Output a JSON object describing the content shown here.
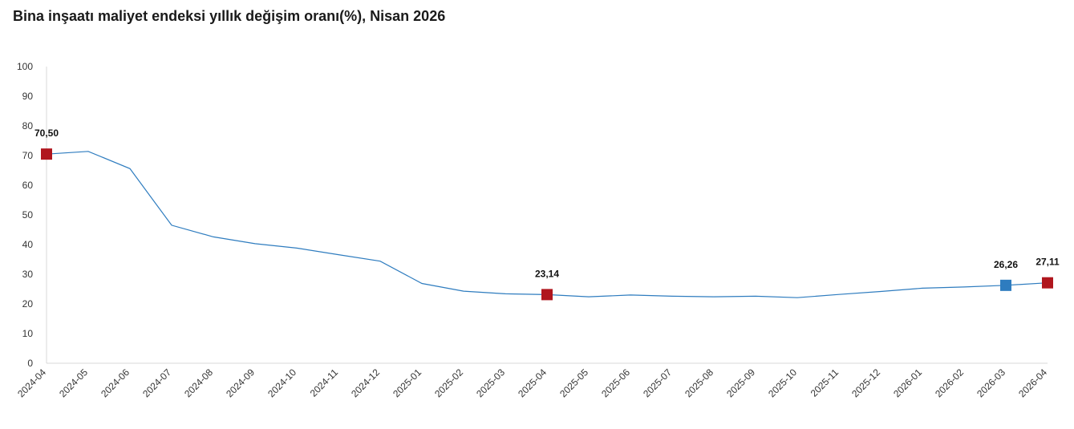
{
  "title": "Bina inşaatı maliyet endeksi yıllık değişim oranı(%), Nisan 2026",
  "chart_data": {
    "type": "line",
    "title": "Bina inşaatı maliyet endeksi yıllık değişim oranı(%), Nisan 2026",
    "xlabel": "",
    "ylabel": "",
    "ylim": [
      0,
      100
    ],
    "yticks": [
      "0",
      "10",
      "20",
      "30",
      "40",
      "50",
      "60",
      "70",
      "80",
      "90",
      "100"
    ],
    "categories": [
      "2024-04",
      "2024-05",
      "2024-06",
      "2024-07",
      "2024-08",
      "2024-09",
      "2024-10",
      "2024-11",
      "2024-12",
      "2025-01",
      "2025-02",
      "2025-03",
      "2025-04",
      "2025-05",
      "2025-06",
      "2025-07",
      "2025-08",
      "2025-09",
      "2025-10",
      "2025-11",
      "2025-12",
      "2026-01",
      "2026-02",
      "2026-03",
      "2026-04"
    ],
    "series": [
      {
        "values": [
          70.5,
          71.4,
          65.6,
          46.5,
          42.6,
          40.3,
          38.8,
          36.6,
          34.4,
          26.9,
          24.3,
          23.4,
          23.14,
          22.4,
          23.0,
          22.6,
          22.4,
          22.6,
          22.1,
          23.2,
          24.2,
          25.3,
          25.7,
          26.26,
          27.11
        ],
        "color": "#2e7cbf"
      }
    ],
    "markers": [
      {
        "index": 0,
        "label": "70,50",
        "color": "#b0161e"
      },
      {
        "index": 12,
        "label": "23,14",
        "color": "#b0161e"
      },
      {
        "index": 23,
        "label": "26,26",
        "color": "#2e7cbf"
      },
      {
        "index": 24,
        "label": "27,11",
        "color": "#b0161e"
      }
    ],
    "grid": false,
    "legend": "none"
  }
}
